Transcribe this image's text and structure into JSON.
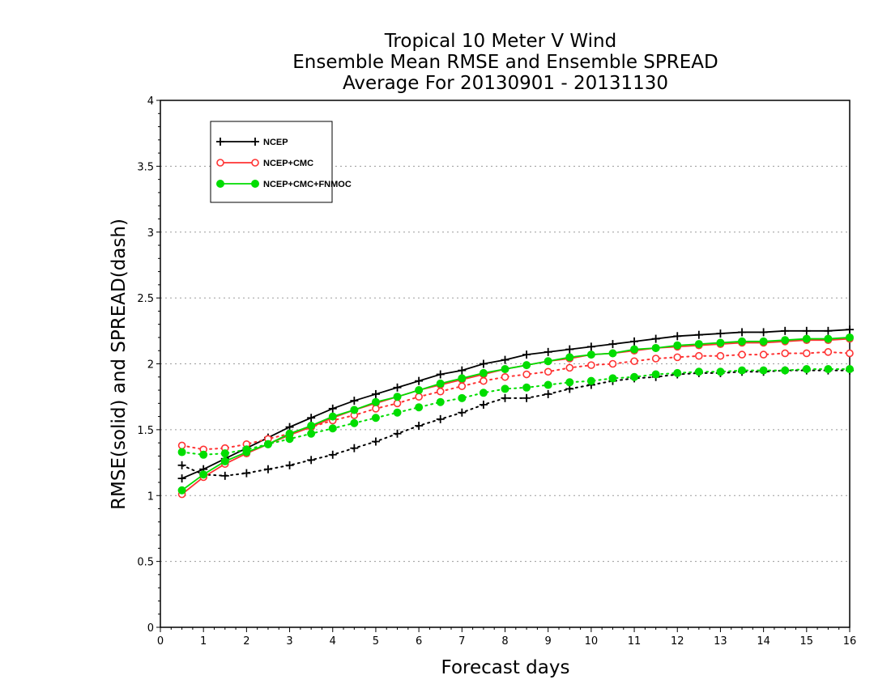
{
  "chart_data": {
    "type": "line",
    "title": [
      "Tropical 10 Meter V Wind",
      "Ensemble Mean RMSE and Ensemble SPREAD",
      "Average For 20130901 - 20131130"
    ],
    "xlabel": "Forecast days",
    "ylabel": "RMSE(solid) and SPREAD(dash)",
    "xlim": [
      0,
      16
    ],
    "ylim": [
      0,
      4
    ],
    "xticks": [
      "0",
      "1",
      "2",
      "3",
      "4",
      "5",
      "6",
      "7",
      "8",
      "9",
      "10",
      "11",
      "12",
      "13",
      "14",
      "15",
      "16"
    ],
    "yticks": [
      "0",
      "0.5",
      "1",
      "1.5",
      "2",
      "2.5",
      "3",
      "3.5",
      "4"
    ],
    "grid": "horizontal dotted",
    "legend_position": "top-left",
    "x": [
      0.5,
      1,
      1.5,
      2,
      2.5,
      3,
      3.5,
      4,
      4.5,
      5,
      5.5,
      6,
      6.5,
      7,
      7.5,
      8,
      8.5,
      9,
      9.5,
      10,
      10.5,
      11,
      11.5,
      12,
      12.5,
      13,
      13.5,
      14,
      14.5,
      15,
      15.5,
      16
    ],
    "series": [
      {
        "name": "NCEP",
        "color": "#000000",
        "marker": "plus",
        "rmse": [
          1.13,
          1.2,
          1.28,
          1.36,
          1.44,
          1.52,
          1.59,
          1.66,
          1.72,
          1.77,
          1.82,
          1.87,
          1.92,
          1.95,
          2.0,
          2.03,
          2.07,
          2.09,
          2.11,
          2.13,
          2.15,
          2.17,
          2.19,
          2.21,
          2.22,
          2.23,
          2.24,
          2.24,
          2.25,
          2.25,
          2.25,
          2.26
        ],
        "spread": [
          1.23,
          1.16,
          1.15,
          1.17,
          1.2,
          1.23,
          1.27,
          1.31,
          1.36,
          1.41,
          1.47,
          1.53,
          1.58,
          1.63,
          1.69,
          1.74,
          1.74,
          1.77,
          1.81,
          1.84,
          1.87,
          1.89,
          1.9,
          1.92,
          1.93,
          1.93,
          1.94,
          1.94,
          1.95,
          1.95,
          1.95,
          1.95
        ]
      },
      {
        "name": "NCEP+CMC",
        "color": "#ff3333",
        "marker": "open-circle",
        "rmse": [
          1.01,
          1.14,
          1.24,
          1.32,
          1.39,
          1.46,
          1.52,
          1.59,
          1.65,
          1.7,
          1.75,
          1.8,
          1.84,
          1.88,
          1.92,
          1.96,
          1.99,
          2.02,
          2.04,
          2.07,
          2.08,
          2.1,
          2.12,
          2.13,
          2.14,
          2.15,
          2.16,
          2.16,
          2.17,
          2.18,
          2.18,
          2.19
        ],
        "spread": [
          1.38,
          1.35,
          1.36,
          1.39,
          1.43,
          1.47,
          1.52,
          1.57,
          1.61,
          1.66,
          1.7,
          1.75,
          1.79,
          1.83,
          1.87,
          1.9,
          1.92,
          1.94,
          1.97,
          1.99,
          2.0,
          2.02,
          2.04,
          2.05,
          2.06,
          2.06,
          2.07,
          2.07,
          2.08,
          2.08,
          2.09,
          2.08
        ]
      },
      {
        "name": "NCEP+CMC+FNMOC",
        "color": "#00dd00",
        "marker": "filled-circle",
        "rmse": [
          1.04,
          1.16,
          1.26,
          1.33,
          1.39,
          1.47,
          1.53,
          1.6,
          1.65,
          1.71,
          1.75,
          1.8,
          1.85,
          1.89,
          1.93,
          1.96,
          1.99,
          2.02,
          2.05,
          2.07,
          2.08,
          2.11,
          2.12,
          2.14,
          2.15,
          2.16,
          2.17,
          2.17,
          2.18,
          2.19,
          2.19,
          2.2
        ],
        "spread": [
          1.33,
          1.31,
          1.32,
          1.35,
          1.39,
          1.43,
          1.47,
          1.51,
          1.55,
          1.59,
          1.63,
          1.67,
          1.71,
          1.74,
          1.78,
          1.81,
          1.82,
          1.84,
          1.86,
          1.87,
          1.89,
          1.9,
          1.92,
          1.93,
          1.94,
          1.94,
          1.95,
          1.95,
          1.95,
          1.96,
          1.96,
          1.96
        ]
      }
    ]
  }
}
